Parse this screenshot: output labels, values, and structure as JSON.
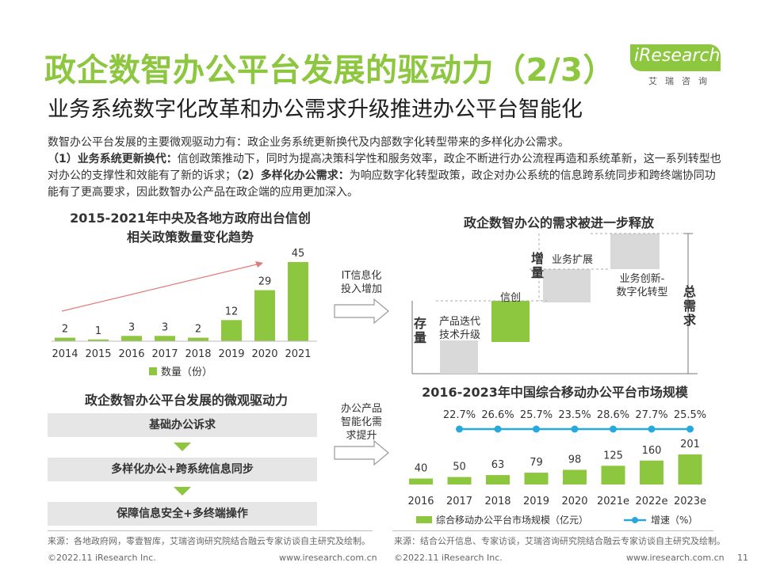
{
  "header": {
    "title": "政企数智办公平台发展的驱动力（2/3）",
    "subtitle": "业务系统数字化改革和办公需求升级推进办公平台智能化",
    "logo_text": "iResearch",
    "logo_sub": "艾瑞咨询"
  },
  "intro": {
    "line1": "数智办公平台发展的主要微观驱动力有：政企业务系统更新换代及内部数字化转型带来的多样化办公需求。",
    "p1_label": "（1）业务系统更新换代：",
    "p1_text": "信创政策推动下，同时为提高决策科学性和服务效率，政企不断进行办公流程再造和系统革新，这一系列转型也对办公的支撑性和效能有了新的诉求；",
    "p2_label": "（2）多样化办公需求：",
    "p2_text": "为响应数字化转型政策，政企对办公系统的信息跨系统同步和跨终端协同功能有了更高要求，因此数智办公产品在政企端的应用更加深入。"
  },
  "policy_chart": {
    "title_line1": "2015-2021年中央及各地方政府出台信创",
    "title_line2": "相关政策数量变化趋势",
    "legend": "数量（份）"
  },
  "mid_labels": {
    "it_invest": "IT信息化\n投入增加",
    "office_upgrade": "办公产品\n智能化需\n求提升"
  },
  "waterfall": {
    "title": "政企数智办公的需求被进一步释放",
    "stock_label": "存\n量",
    "increment_label": "增\n量",
    "total_label": "总\n需\n求",
    "step1": "产品迭代\n技术升级",
    "step2": "信创",
    "step3": "业务扩展",
    "step4": "业务创新-\n数字化转型"
  },
  "drivers": {
    "title": "政企数智办公平台发展的微观驱动力",
    "items": [
      "基础办公诉求",
      "多样化办公+跨系统信息同步",
      "保障信息安全+多终端操作"
    ]
  },
  "market_chart": {
    "title": "2016-2023年中国综合移动办公平台市场规模",
    "legend_bar": "综合移动办公平台市场规模（亿元）",
    "legend_line": "增速（%）"
  },
  "chart_data": [
    {
      "type": "bar",
      "title": "2015-2021年中央及各地方政府出台信创相关政策数量变化趋势",
      "categories": [
        "2014",
        "2015",
        "2016",
        "2017",
        "2018",
        "2019",
        "2020",
        "2021"
      ],
      "series": [
        {
          "name": "数量（份）",
          "values": [
            2,
            1,
            3,
            3,
            2,
            12,
            29,
            45
          ]
        }
      ],
      "highlight_from_index": 5,
      "colors": {
        "highlight": "#8dc63f",
        "base": "#8dc63f"
      }
    },
    {
      "type": "bar",
      "title": "2016-2023年中国综合移动办公平台市场规模",
      "categories": [
        "2016",
        "2017",
        "2018",
        "2019",
        "2020",
        "2021e",
        "2022e",
        "2023e"
      ],
      "series": [
        {
          "name": "综合移动办公平台市场规模（亿元）",
          "values": [
            40,
            50,
            63,
            79,
            98,
            125,
            160,
            201
          ]
        },
        {
          "name": "增速（%）",
          "type": "line",
          "values": [
            null,
            22.7,
            26.6,
            25.7,
            23.5,
            28.6,
            27.7,
            25.5
          ]
        }
      ],
      "labels_pct": [
        "22.7%",
        "26.6%",
        "25.7%",
        "23.5%",
        "28.6%",
        "27.7%",
        "25.5%"
      ],
      "colors": {
        "bar": "#8dc63f",
        "line": "#29a8e0"
      }
    }
  ],
  "footer": {
    "source_left": "来源：各地政府网，零壹智库，艾瑞咨询研究院结合融云专家访谈自主研究及绘制。",
    "source_right": "来源：结合公开信息、专家访谈，艾瑞咨询研究院结合融云专家访谈自主研究及绘制。",
    "copyright_left": "©2022.11 iResearch Inc.",
    "url_left": "www.iresearch.com.cn",
    "copyright_right": "©2022.11 iResearch Inc.",
    "url_right": "www.iresearch.com.cn",
    "page": "11"
  },
  "colors": {
    "accent": "#8dc63f",
    "line": "#29a8e0",
    "gray_box": "#e6e6e6"
  }
}
